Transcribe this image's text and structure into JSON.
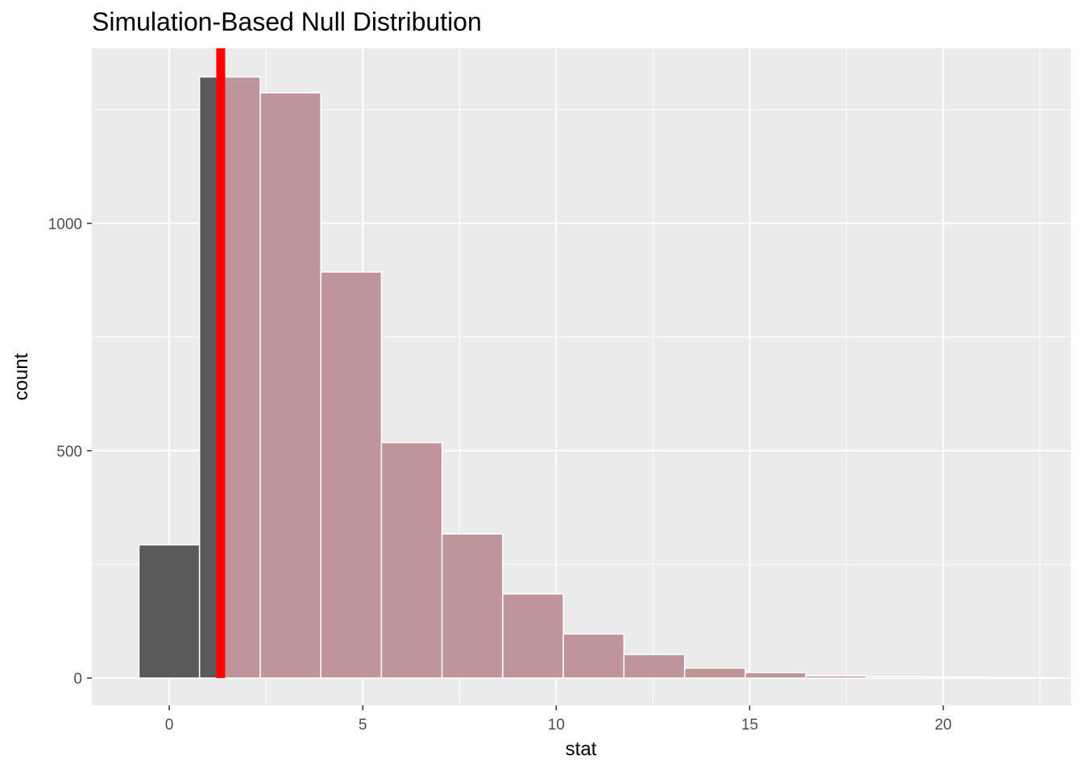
{
  "chart_data": {
    "type": "bar",
    "title": "Simulation-Based Null Distribution",
    "xlabel": "stat",
    "ylabel": "count",
    "xlim": [
      -2,
      23.3
    ],
    "ylim": [
      -60,
      1385
    ],
    "x_ticks": [
      0,
      5,
      10,
      15,
      20
    ],
    "x_tick_labels": [
      "0",
      "5",
      "10",
      "15",
      "20"
    ],
    "y_ticks": [
      0,
      500,
      1000
    ],
    "y_tick_labels": [
      "0",
      "500",
      "1000"
    ],
    "grid": true,
    "bin_width": 1.5667,
    "bins": [
      {
        "start": -0.783,
        "end": 0.783,
        "count": 293,
        "shaded": false
      },
      {
        "start": 0.783,
        "end": 1.25,
        "count": 1322,
        "shaded": false
      },
      {
        "start": 1.25,
        "end": 2.35,
        "count": 1322,
        "shaded": true
      },
      {
        "start": 2.35,
        "end": 3.917,
        "count": 1287,
        "shaded": true
      },
      {
        "start": 3.917,
        "end": 5.483,
        "count": 893,
        "shaded": true
      },
      {
        "start": 5.483,
        "end": 7.05,
        "count": 518,
        "shaded": true
      },
      {
        "start": 7.05,
        "end": 8.617,
        "count": 317,
        "shaded": true
      },
      {
        "start": 8.617,
        "end": 10.183,
        "count": 185,
        "shaded": true
      },
      {
        "start": 10.183,
        "end": 11.75,
        "count": 97,
        "shaded": true
      },
      {
        "start": 11.75,
        "end": 13.317,
        "count": 52,
        "shaded": true
      },
      {
        "start": 13.317,
        "end": 14.883,
        "count": 22,
        "shaded": true
      },
      {
        "start": 14.883,
        "end": 16.45,
        "count": 12,
        "shaded": true
      },
      {
        "start": 16.45,
        "end": 18.017,
        "count": 5,
        "shaded": true
      },
      {
        "start": 18.017,
        "end": 19.583,
        "count": 3,
        "shaded": true
      },
      {
        "start": 19.583,
        "end": 21.15,
        "count": 2,
        "shaded": true
      },
      {
        "start": 21.15,
        "end": 22.717,
        "count": 1,
        "shaded": true
      }
    ],
    "observed_stat": 1.33,
    "colors": {
      "panel_background": "#ebebeb",
      "grid": "#ffffff",
      "bar_fill": "#595959",
      "shaded_fill": "#bf959b",
      "bar_border": "#ffffff",
      "observed_line": "#ff0000"
    }
  }
}
